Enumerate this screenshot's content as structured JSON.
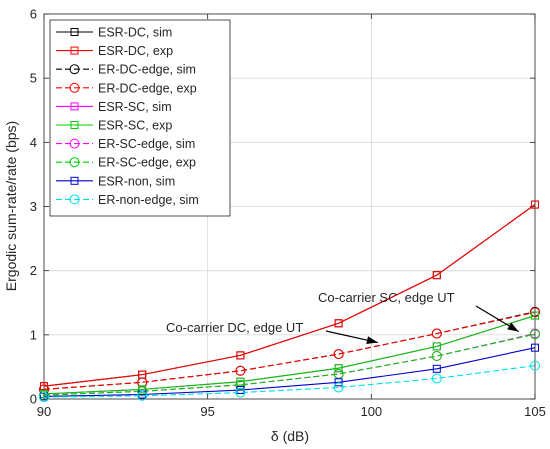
{
  "chart_data": {
    "type": "line",
    "xlabel": "δ (dB)",
    "ylabel": "Ergodic sum-rate/rate (bps)",
    "xlim": [
      90,
      105
    ],
    "ylim": [
      0,
      6
    ],
    "x_ticks": [
      90,
      95,
      100,
      105
    ],
    "y_ticks": [
      0,
      1,
      2,
      3,
      4,
      5,
      6
    ],
    "grid": true,
    "legend_position": "top-left",
    "x": [
      90,
      93,
      96,
      99,
      102,
      105
    ],
    "series": [
      {
        "name": "ESR-DC, sim",
        "color": "#000000",
        "dash": "solid",
        "marker": "square",
        "values": [
          0.2,
          0.38,
          0.68,
          1.18,
          1.93,
          3.03
        ]
      },
      {
        "name": "ESR-DC, exp",
        "color": "#ff0000",
        "dash": "solid",
        "marker": "square",
        "values": [
          0.2,
          0.38,
          0.68,
          1.18,
          1.93,
          3.03
        ]
      },
      {
        "name": "ER-DC-edge, sim",
        "color": "#000000",
        "dash": "dashed",
        "marker": "circle",
        "values": [
          0.15,
          0.26,
          0.44,
          0.7,
          1.02,
          1.36
        ]
      },
      {
        "name": "ER-DC-edge, exp",
        "color": "#ff0000",
        "dash": "dashed",
        "marker": "circle",
        "values": [
          0.15,
          0.26,
          0.44,
          0.7,
          1.02,
          1.35
        ]
      },
      {
        "name": "ESR-SC, sim",
        "color": "#ff00ff",
        "dash": "solid",
        "marker": "square",
        "values": [
          0.08,
          0.15,
          0.27,
          0.48,
          0.82,
          1.3
        ]
      },
      {
        "name": "ESR-SC, exp",
        "color": "#00cc00",
        "dash": "solid",
        "marker": "square",
        "values": [
          0.08,
          0.15,
          0.27,
          0.48,
          0.82,
          1.3
        ]
      },
      {
        "name": "ER-SC-edge, sim",
        "color": "#ff00ff",
        "dash": "dashed",
        "marker": "circle",
        "values": [
          0.06,
          0.12,
          0.22,
          0.39,
          0.67,
          1.02
        ]
      },
      {
        "name": "ER-SC-edge, exp",
        "color": "#00cc00",
        "dash": "dashed",
        "marker": "circle",
        "values": [
          0.06,
          0.12,
          0.22,
          0.39,
          0.67,
          1.01
        ]
      },
      {
        "name": "ESR-non, sim",
        "color": "#0000cc",
        "dash": "solid",
        "marker": "square",
        "values": [
          0.04,
          0.07,
          0.14,
          0.26,
          0.47,
          0.8
        ]
      },
      {
        "name": "ER-non-edge, sim",
        "color": "#00e0e0",
        "dash": "dashed",
        "marker": "circle",
        "values": [
          0.03,
          0.05,
          0.1,
          0.18,
          0.32,
          0.52
        ]
      }
    ],
    "annotations": [
      {
        "text": "Co-carrier SC, edge UT",
        "arrow_to": {
          "x": 104.5,
          "y": 1.05
        }
      },
      {
        "text": "Co-carrier DC, edge UT",
        "arrow_to": {
          "x": 100.2,
          "y": 0.88
        }
      }
    ]
  }
}
